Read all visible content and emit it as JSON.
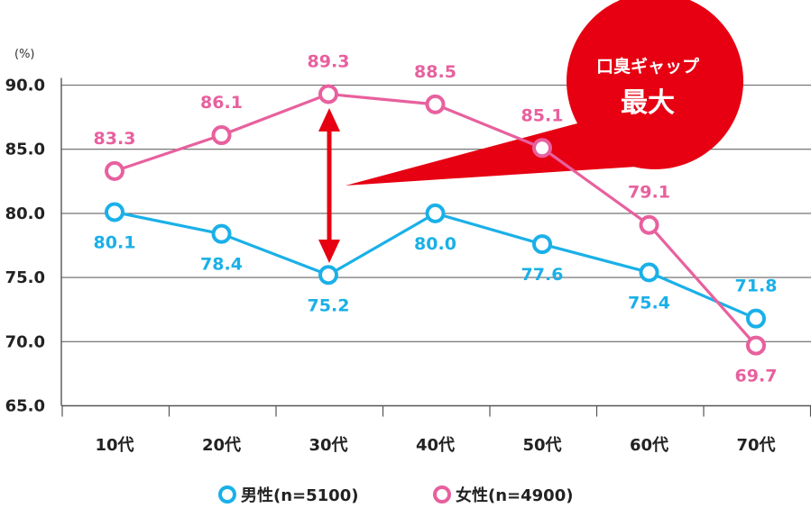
{
  "chart_data": {
    "type": "line",
    "y_unit_label": "(%)",
    "categories": [
      "10代",
      "20代",
      "30代",
      "40代",
      "50代",
      "60代",
      "70代"
    ],
    "ylim": [
      65.0,
      90.0
    ],
    "yticks": [
      "65.0",
      "70.0",
      "75.0",
      "80.0",
      "85.0",
      "90.0"
    ],
    "grid": true,
    "legend_position": "bottom",
    "series": [
      {
        "name": "男性(n=5100)",
        "color": "#1ab0e8",
        "values": [
          80.1,
          78.4,
          75.2,
          80.0,
          77.6,
          75.4,
          71.8
        ],
        "labels": [
          "80.1",
          "78.4",
          "75.2",
          "80.0",
          "77.6",
          "75.4",
          "71.8"
        ]
      },
      {
        "name": "女性(n=4900)",
        "color": "#e8609e",
        "values": [
          83.3,
          86.1,
          89.3,
          88.5,
          85.1,
          79.1,
          69.7
        ],
        "labels": [
          "83.3",
          "86.1",
          "89.3",
          "88.5",
          "85.1",
          "79.1",
          "69.7"
        ]
      }
    ],
    "annotation": {
      "line1": "口臭ギャップ",
      "line2": "最大",
      "color": "#e60012",
      "gap_category": "30代"
    }
  }
}
